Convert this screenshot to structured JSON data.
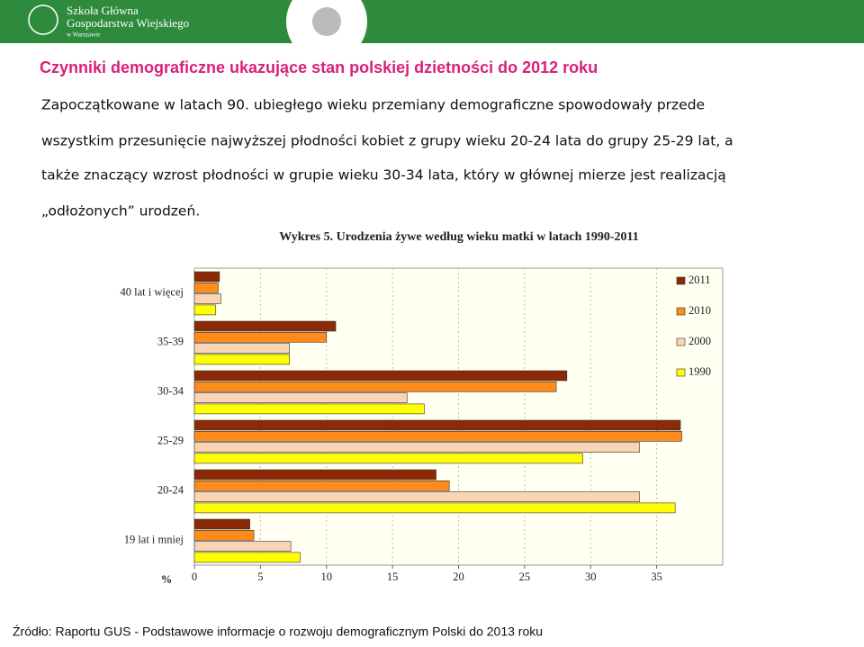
{
  "header": {
    "school": [
      "Szkoła Główna",
      "Gospodarstwa Wiejskiego",
      "w Warszawie"
    ]
  },
  "slide_title": "Czynniki demograficzne ukazujące stan polskiej dzietności do 2012 roku",
  "paragraph": [
    "Zapoczątkowane w latach 90. ubiegłego wieku przemiany demograficzne spowodowały przede",
    "wszystkim przesunięcie najwyższej płodności kobiet z grupy wieku 20-24 lata do grupy 25-29 lat, a",
    "także znaczący wzrost płodności w grupie wieku 30-34 lata, który w głównej mierze jest realizacją",
    "„odłożonych” urodzeń."
  ],
  "source": "Źródło: Raportu GUS - Podstawowe informacje o rozwoju demograficznym Polski do 2013 roku",
  "chart_data": {
    "type": "hbar",
    "title": "Wykres 5. Urodzenia żywe według wieku matki w latach 1990-2011",
    "x_label": "%",
    "categories": [
      "40 lat i więcej",
      "35-39",
      "30-34",
      "25-29",
      "20-24",
      "19 lat i mniej"
    ],
    "series": [
      {
        "name": "2011",
        "color": "#8b2a06",
        "values": [
          1.9,
          10.7,
          28.2,
          36.8,
          18.3,
          4.2
        ]
      },
      {
        "name": "2010",
        "color": "#ff8c1a",
        "values": [
          1.8,
          10.0,
          27.4,
          36.9,
          19.3,
          4.5
        ]
      },
      {
        "name": "2000",
        "color": "#fbd4b4",
        "values": [
          2.0,
          7.2,
          16.1,
          33.7,
          33.7,
          7.3
        ]
      },
      {
        "name": "1990",
        "color": "#ffff00",
        "values": [
          1.6,
          7.2,
          17.4,
          29.4,
          36.4,
          8.0
        ]
      }
    ],
    "xlim": [
      0,
      40
    ],
    "xticks": [
      0,
      5,
      10,
      15,
      20,
      25,
      30,
      35
    ],
    "grid": true,
    "legend": "right"
  }
}
